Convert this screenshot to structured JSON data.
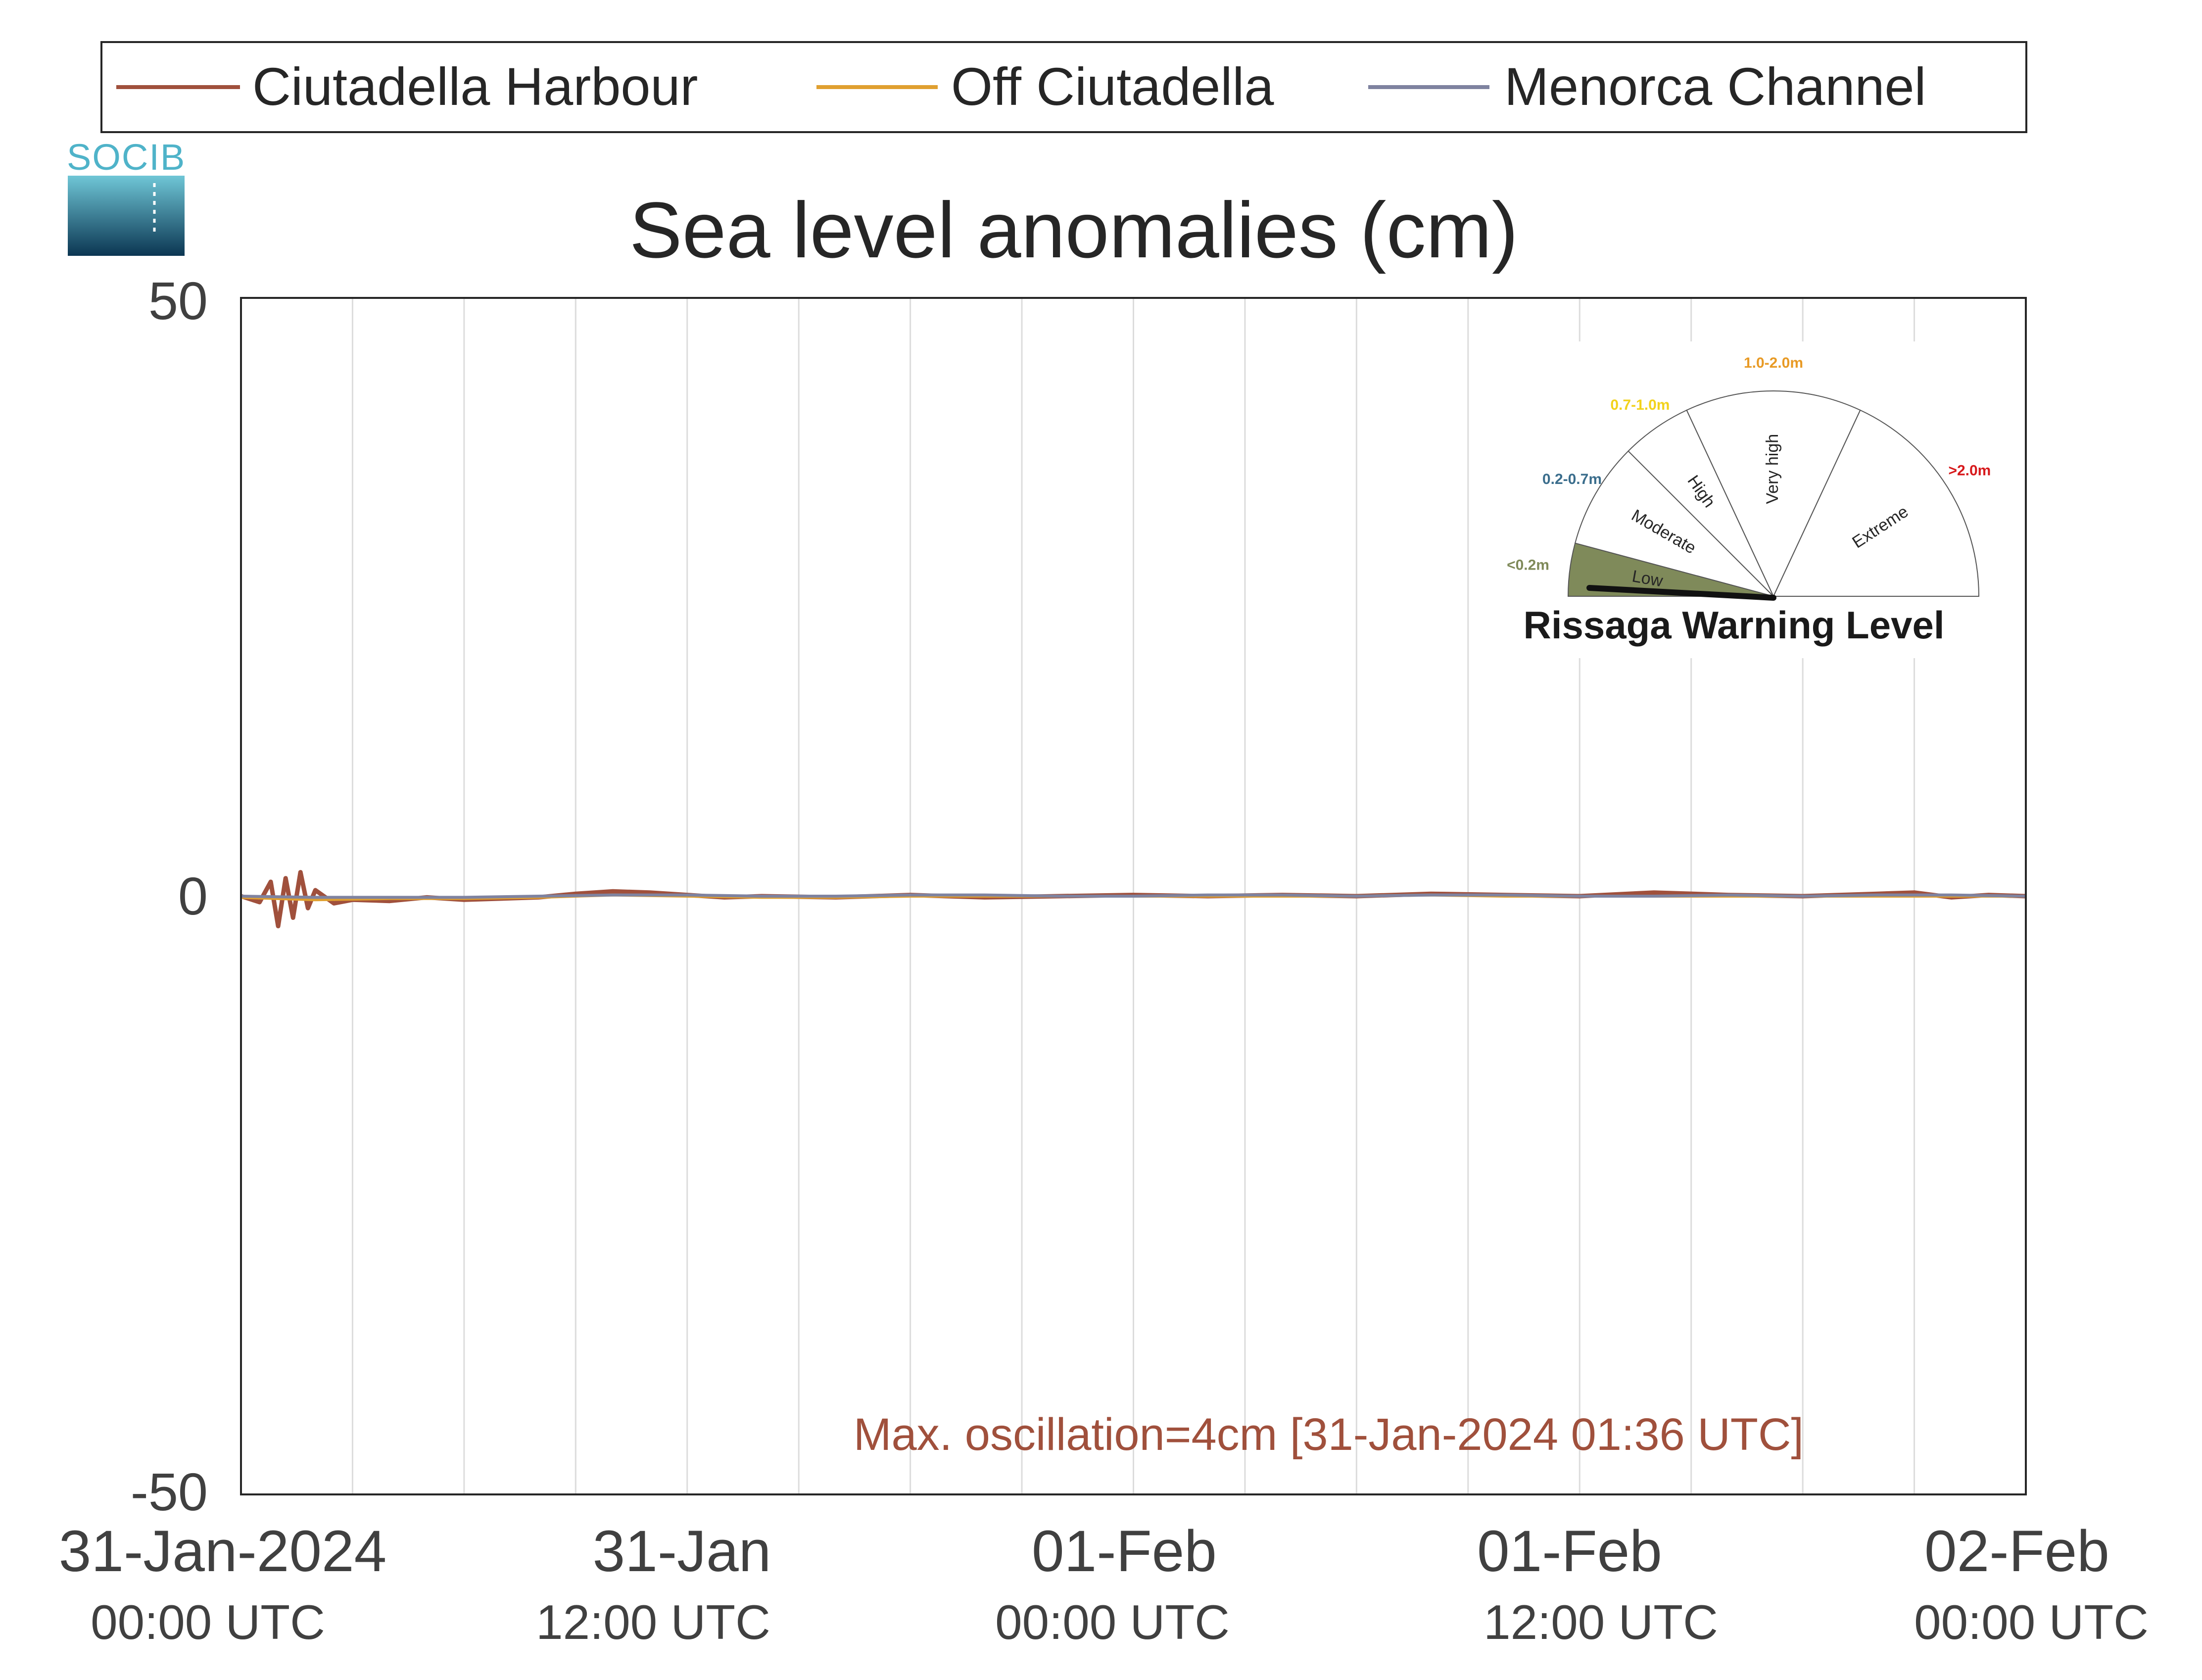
{
  "chart_data": {
    "type": "line",
    "title": "Sea level anomalies (cm)",
    "ylim": [
      -50,
      50
    ],
    "yticks": [
      "50",
      "0",
      "-50"
    ],
    "xlim_hours": [
      0,
      48
    ],
    "xticks": [
      {
        "label1": "31-Jan-2024",
        "label2": "00:00 UTC"
      },
      {
        "label1": "31-Jan",
        "label2": "12:00 UTC"
      },
      {
        "label1": "01-Feb",
        "label2": "00:00 UTC"
      },
      {
        "label1": "01-Feb",
        "label2": "12:00 UTC"
      },
      {
        "label1": "02-Feb",
        "label2": "00:00 UTC"
      }
    ],
    "grid": "vertical every 3 hours",
    "legend_position": "top",
    "series": [
      {
        "name": "Ciutadella Harbour",
        "color": "#a0503c",
        "x": [
          0,
          0.5,
          0.8,
          1.0,
          1.2,
          1.4,
          1.6,
          1.8,
          2.0,
          2.5,
          3,
          4,
          5,
          6,
          8,
          9,
          10,
          11,
          12,
          13,
          14,
          16,
          18,
          20,
          22,
          24,
          26,
          28,
          30,
          32,
          34,
          36,
          38,
          40,
          42,
          44,
          45,
          46,
          47,
          48
        ],
        "y": [
          0,
          -0.5,
          1.2,
          -2.5,
          1.5,
          -1.8,
          2.0,
          -1.0,
          0.5,
          -0.6,
          -0.3,
          -0.4,
          -0.1,
          -0.3,
          -0.1,
          0.2,
          0.4,
          0.3,
          0.1,
          -0.1,
          0.0,
          -0.1,
          0.1,
          -0.1,
          0.0,
          0.1,
          0.0,
          0.1,
          0.0,
          0.2,
          0.1,
          0.0,
          0.3,
          0.1,
          0.0,
          0.2,
          0.3,
          -0.1,
          0.1,
          0.0
        ]
      },
      {
        "name": "Off Ciutadella",
        "color": "#e0a030",
        "x": [
          0,
          2,
          4,
          6,
          8,
          10,
          12,
          14,
          16,
          18,
          20,
          22,
          24,
          26,
          28,
          30,
          32,
          34,
          36,
          38,
          40,
          42,
          44,
          46,
          48
        ],
        "y": [
          -0.1,
          -0.3,
          -0.2,
          -0.2,
          -0.1,
          0.1,
          0.0,
          -0.1,
          -0.1,
          0.0,
          0.0,
          0.0,
          0.0,
          0.0,
          0.0,
          0.0,
          0.1,
          0.0,
          0.0,
          0.0,
          0.0,
          0.0,
          0.0,
          0.0,
          0.0
        ]
      },
      {
        "name": "Menorca Channel",
        "color": "#7f83a0",
        "x": [
          0,
          2,
          4,
          6,
          8,
          10,
          12,
          14,
          16,
          18,
          20,
          22,
          24,
          26,
          28,
          30,
          32,
          34,
          36,
          38,
          40,
          42,
          44,
          46,
          48
        ],
        "y": [
          0.0,
          -0.1,
          -0.1,
          -0.1,
          0.0,
          0.1,
          0.1,
          0.0,
          0.0,
          0.1,
          0.1,
          0.0,
          0.0,
          0.1,
          0.1,
          0.0,
          0.1,
          0.1,
          0.0,
          0.0,
          0.1,
          0.0,
          0.1,
          0.1,
          0.0
        ]
      }
    ],
    "annotation": "Max. oscillation=4cm [31-Jan-2024 01:36 UTC]"
  },
  "logo": {
    "text": "SOCIB"
  },
  "gauge": {
    "title": "Rissaga Warning Level",
    "current_level": "Low",
    "segments": [
      {
        "label": "Low",
        "range": "<0.2m",
        "range_color": "#7f8a5a",
        "fill": "#7f8a5a"
      },
      {
        "label": "Moderate",
        "range": "0.2-0.7m",
        "range_color": "#3a6d8c",
        "fill": "#ffffff"
      },
      {
        "label": "High",
        "range": "0.7-1.0m",
        "range_color": "#f2d21b",
        "fill": "#ffffff"
      },
      {
        "label": "Very high",
        "range": "1.0-2.0m",
        "range_color": "#e89a25",
        "fill": "#ffffff"
      },
      {
        "label": "Extreme",
        "range": ">2.0m",
        "range_color": "#d7191c",
        "fill": "#ffffff"
      }
    ]
  }
}
